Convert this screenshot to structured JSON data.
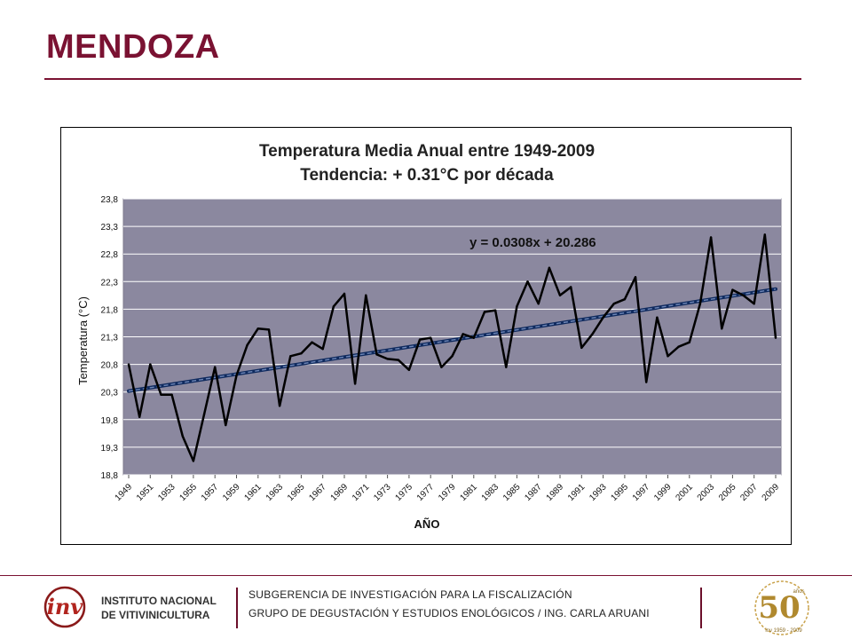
{
  "slide": {
    "title": "MENDOZA"
  },
  "colors": {
    "brand": "#7a1232",
    "plot_background": "#8b889f",
    "series_line": "#000000",
    "trend_line": "#1f3d7a"
  },
  "chart_data": {
    "type": "line",
    "title_line1": "Temperatura Media Anual entre 1949-2009",
    "title_line2": "Tendencia: + 0.31°C por década",
    "xlabel": "AÑO",
    "ylabel": "Temperatura (°C)",
    "y_ticks": [
      "23,8",
      "23,3",
      "22,8",
      "22,3",
      "21,8",
      "21,3",
      "20,8",
      "20,3",
      "19,8",
      "19,3",
      "18,8"
    ],
    "ylim": [
      18.8,
      23.8
    ],
    "x_tick_labels": [
      "1949",
      "1951",
      "1953",
      "1955",
      "1957",
      "1959",
      "1961",
      "1963",
      "1965",
      "1967",
      "1969",
      "1971",
      "1973",
      "1975",
      "1977",
      "1979",
      "1981",
      "1983",
      "1985",
      "1987",
      "1989",
      "1991",
      "1993",
      "1995",
      "1997",
      "1999",
      "2001",
      "2003",
      "2005",
      "2007",
      "2009"
    ],
    "grid": true,
    "legend": "none",
    "trend_equation": "y = 0.0308x + 20.286",
    "trend": {
      "slope": 0.0308,
      "intercept": 20.286
    },
    "series": [
      {
        "x": [
          1949,
          1950,
          1951,
          1952,
          1953,
          1954,
          1955,
          1956,
          1957,
          1958,
          1959,
          1960,
          1961,
          1962,
          1963,
          1964,
          1965,
          1966,
          1967,
          1968,
          1969,
          1970,
          1971,
          1972,
          1973,
          1974,
          1975,
          1976,
          1977,
          1978,
          1979,
          1980,
          1981,
          1982,
          1983,
          1984,
          1985,
          1986,
          1987,
          1988,
          1989,
          1990,
          1991,
          1992,
          1993,
          1994,
          1995,
          1996,
          1997,
          1998,
          1999,
          2000,
          2001,
          2002,
          2003,
          2004,
          2005,
          2006,
          2007,
          2008,
          2009
        ],
        "values": [
          20.8,
          19.85,
          20.8,
          20.25,
          20.25,
          19.5,
          19.05,
          19.9,
          20.75,
          19.7,
          20.6,
          21.15,
          21.45,
          21.43,
          20.05,
          20.95,
          21.0,
          21.2,
          21.08,
          21.85,
          22.08,
          20.45,
          22.05,
          20.98,
          20.9,
          20.88,
          20.7,
          21.25,
          21.28,
          20.75,
          20.95,
          21.35,
          21.28,
          21.75,
          21.78,
          20.75,
          21.85,
          22.3,
          21.9,
          22.55,
          22.05,
          22.2,
          21.1,
          21.35,
          21.65,
          21.9,
          21.98,
          22.38,
          20.48,
          21.65,
          20.95,
          21.12,
          21.2,
          21.9,
          23.1,
          21.45,
          22.15,
          22.05,
          21.9,
          23.15,
          21.28
        ]
      }
    ]
  },
  "footer": {
    "org_line1": "INSTITUTO NACIONAL",
    "org_line2": "DE VITIVINICULTURA",
    "logo_letters": "inv",
    "line1": "SUBGERENCIA DE INVESTIGACIÓN PARA LA FISCALIZACIÓN",
    "line2": "GRUPO DE DEGUSTACIÓN Y ESTUDIOS ENOLÓGICOS / ING. CARLA ARUANI",
    "anniversary_number": "50",
    "anniversary_small": "años",
    "anniversary_years": "inv 1959 - 2009"
  }
}
